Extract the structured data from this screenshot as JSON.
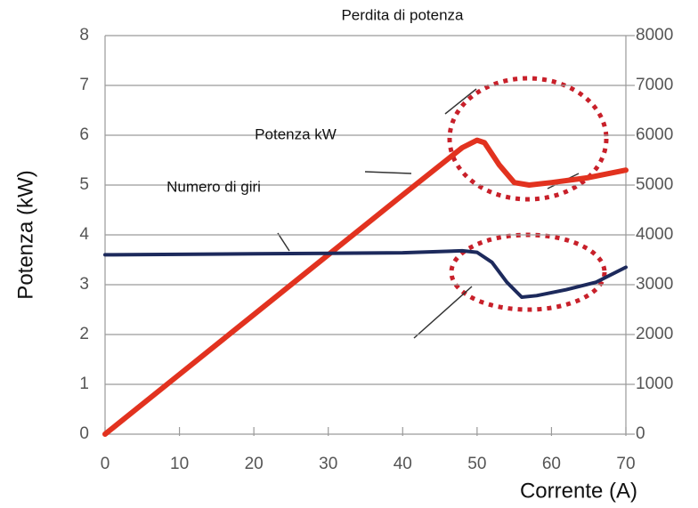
{
  "chart_data": {
    "type": "line",
    "annotations": [
      "Perdita di potenza"
    ],
    "xlabel": "Corrente (A)",
    "ylabel": "Potenza (kW)",
    "xlim": [
      0,
      70
    ],
    "xticks": [
      0,
      10,
      20,
      30,
      40,
      50,
      60,
      70
    ],
    "ylim": [
      0,
      8
    ],
    "yticks": [
      0,
      1,
      2,
      3,
      4,
      5,
      6,
      7,
      8
    ],
    "y2lim": [
      0,
      8000
    ],
    "y2ticks": [
      0,
      1000,
      2000,
      3000,
      4000,
      5000,
      6000,
      7000,
      8000
    ],
    "grid": true,
    "series": [
      {
        "name": "Potenza kW",
        "color": "#e2321f",
        "x": [
          0,
          10,
          20,
          30,
          40,
          48,
          50,
          51,
          53,
          55,
          57,
          60,
          65,
          70
        ],
        "values": [
          0,
          1.2,
          2.4,
          3.6,
          4.8,
          5.75,
          5.9,
          5.85,
          5.4,
          5.05,
          5.0,
          5.05,
          5.15,
          5.3
        ]
      },
      {
        "name": "Numero di giri",
        "color": "#1d2a5c",
        "axis": "y2",
        "x": [
          0,
          10,
          20,
          30,
          40,
          48,
          50,
          52,
          54,
          56,
          58,
          62,
          66,
          70
        ],
        "values": [
          3600,
          3610,
          3620,
          3630,
          3640,
          3680,
          3650,
          3450,
          3050,
          2750,
          2780,
          2900,
          3050,
          3350
        ]
      }
    ]
  }
}
